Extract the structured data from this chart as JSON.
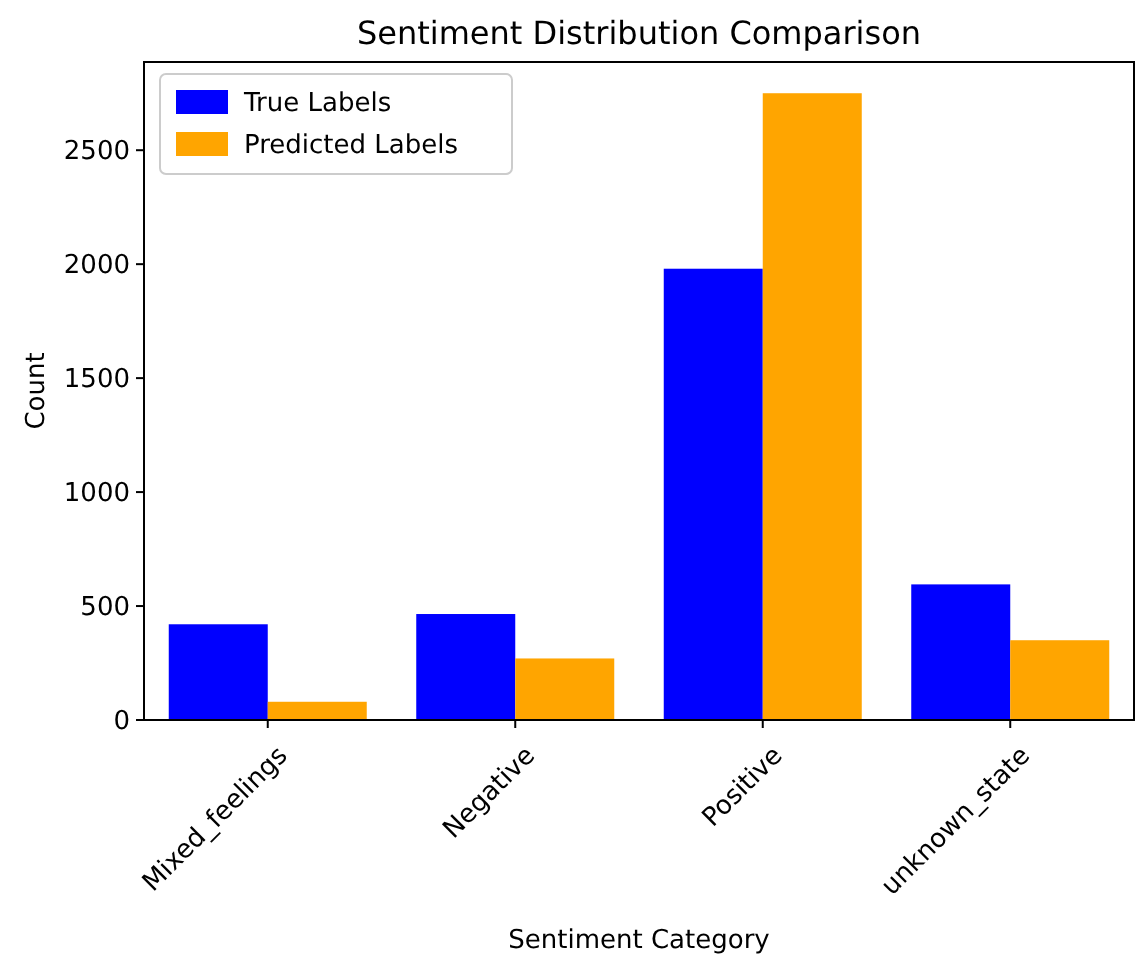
{
  "chart_data": {
    "type": "bar",
    "title": "Sentiment Distribution Comparison",
    "xlabel": "Sentiment Category",
    "ylabel": "Count",
    "categories": [
      "Mixed_feelings",
      "Negative",
      "Positive",
      "unknown_state"
    ],
    "series": [
      {
        "name": "True Labels",
        "color": "#0000ff",
        "values": [
          420,
          465,
          1980,
          595
        ]
      },
      {
        "name": "Predicted Labels",
        "color": "#ffa500",
        "values": [
          80,
          270,
          2750,
          350
        ]
      }
    ],
    "ylim": [
      0,
      2887
    ],
    "yticks": [
      0,
      500,
      1000,
      1500,
      2000,
      2500
    ],
    "grid": false,
    "legend": "top left"
  }
}
